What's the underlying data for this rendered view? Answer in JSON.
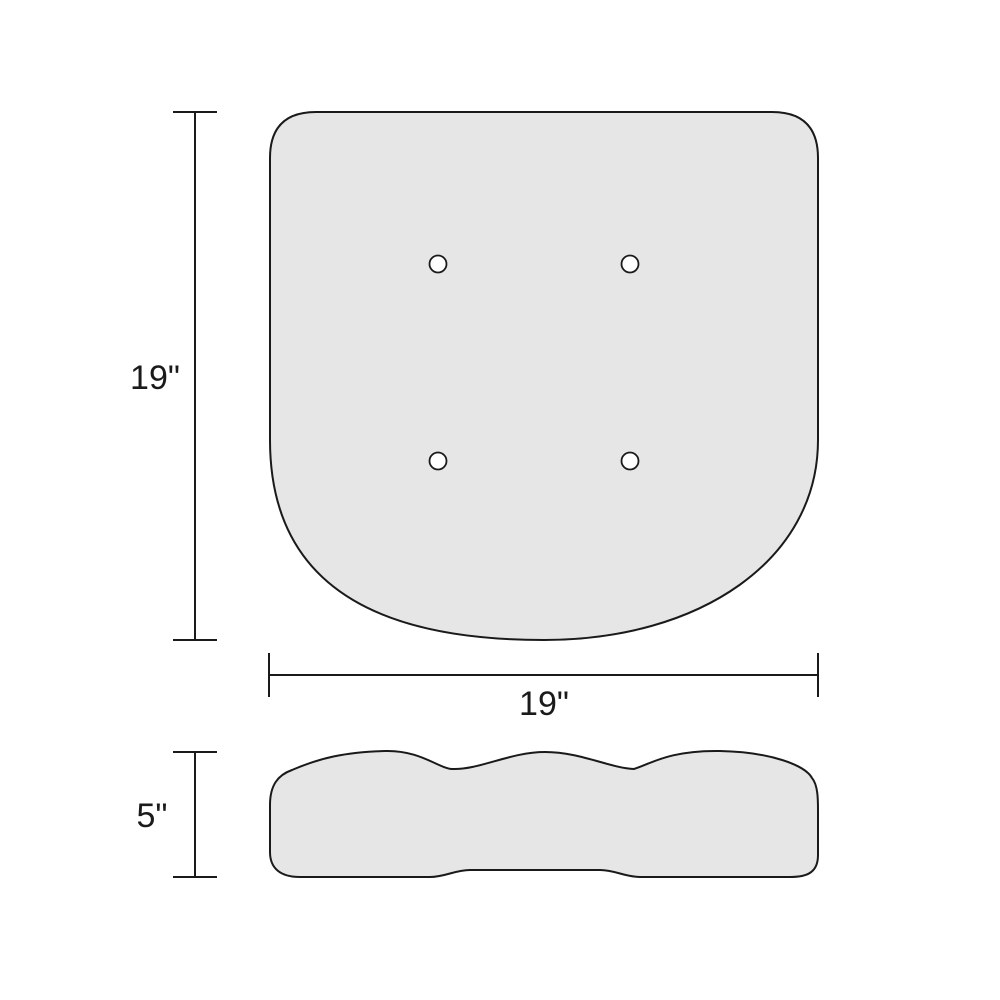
{
  "dimensions": {
    "height_label": "19\"",
    "width_label": "19\"",
    "thickness_label": "5\""
  },
  "colors": {
    "cushion_fill": "#e6e6e6",
    "outline": "#1a1a1a",
    "tuft_fill": "#ffffff"
  },
  "tufts": {
    "count": 4
  }
}
